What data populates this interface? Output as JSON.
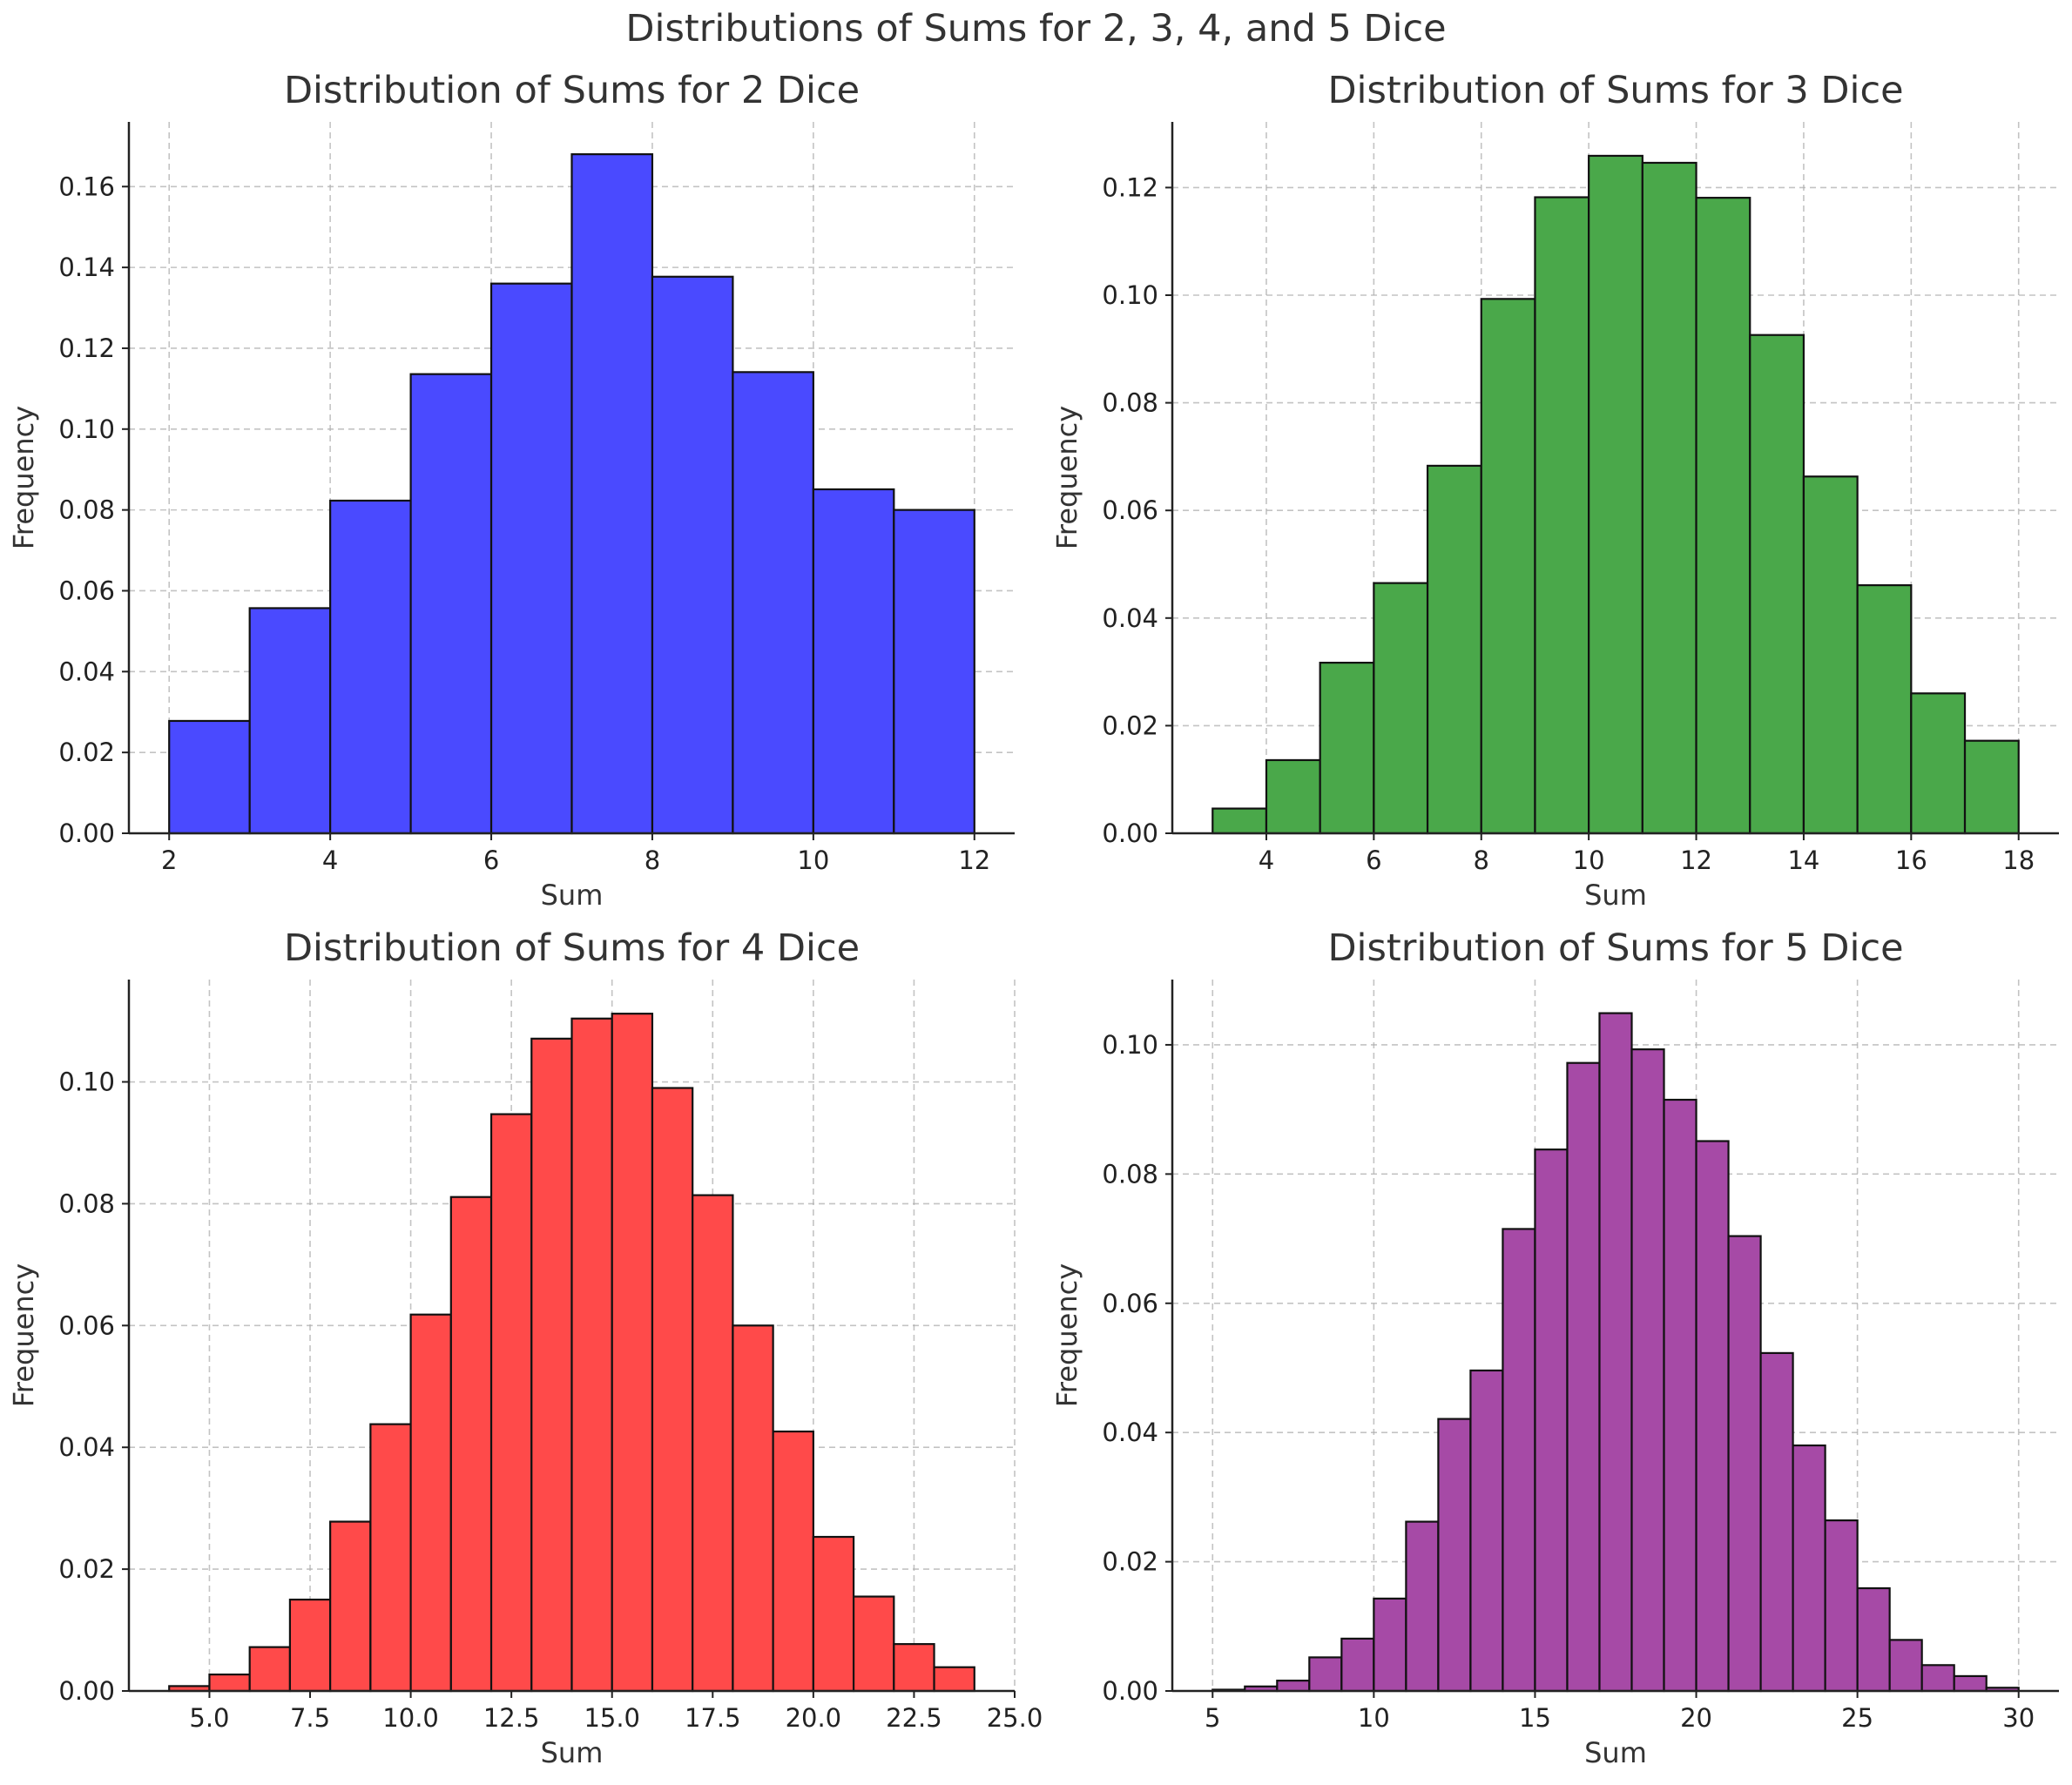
{
  "suptitle": "Distributions of Sums for 2, 3, 4, and 5 Dice",
  "chart_data": [
    {
      "type": "bar",
      "title": "Distribution of Sums for 2 Dice",
      "xlabel": "Sum",
      "ylabel": "Frequency",
      "color": "#4a4aff",
      "bin_edges": [
        2,
        3,
        4,
        5,
        6,
        7,
        8,
        9,
        10,
        11,
        12
      ],
      "values": [
        0.0278,
        0.0557,
        0.0823,
        0.1136,
        0.136,
        0.168,
        0.1377,
        0.1141,
        0.0851,
        0.08
      ],
      "xlim": [
        1.5,
        12.5
      ],
      "ylim": [
        0,
        0.176
      ],
      "xticks": [
        2,
        4,
        6,
        8,
        10,
        12
      ],
      "xtick_labels": [
        "2",
        "4",
        "6",
        "8",
        "10",
        "12"
      ],
      "yticks": [
        0,
        0.02,
        0.04,
        0.06,
        0.08,
        0.1,
        0.12,
        0.14,
        0.16
      ],
      "ytick_labels": [
        "0.00",
        "0.02",
        "0.04",
        "0.06",
        "0.08",
        "0.10",
        "0.12",
        "0.14",
        "0.16"
      ],
      "grid": true
    },
    {
      "type": "bar",
      "title": "Distribution of Sums for 3 Dice",
      "xlabel": "Sum",
      "ylabel": "Frequency",
      "color": "#4aa84a",
      "bin_edges": [
        3,
        4,
        5,
        6,
        7,
        8,
        9,
        10,
        11,
        12,
        13,
        14,
        15,
        16,
        17,
        18
      ],
      "values": [
        0.0046,
        0.0136,
        0.0317,
        0.0465,
        0.0683,
        0.0993,
        0.1182,
        0.1259,
        0.1246,
        0.1181,
        0.0926,
        0.0663,
        0.0461,
        0.026,
        0.0172
      ],
      "xlim": [
        2.25,
        18.75
      ],
      "ylim": [
        0,
        0.1322
      ],
      "xticks": [
        4,
        6,
        8,
        10,
        12,
        14,
        16,
        18
      ],
      "xtick_labels": [
        "4",
        "6",
        "8",
        "10",
        "12",
        "14",
        "16",
        "18"
      ],
      "yticks": [
        0,
        0.02,
        0.04,
        0.06,
        0.08,
        0.1,
        0.12
      ],
      "ytick_labels": [
        "0.00",
        "0.02",
        "0.04",
        "0.06",
        "0.08",
        "0.10",
        "0.12"
      ],
      "grid": true
    },
    {
      "type": "bar",
      "title": "Distribution of Sums for 4 Dice",
      "xlabel": "Sum",
      "ylabel": "Frequency",
      "color": "#ff4a4a",
      "bin_edges": [
        4,
        5,
        6,
        7,
        8,
        9,
        10,
        11,
        12,
        13,
        14,
        15,
        16,
        17,
        18,
        19,
        20,
        21,
        22,
        23,
        24
      ],
      "values": [
        0.0008,
        0.0027,
        0.0072,
        0.015,
        0.0278,
        0.0438,
        0.0618,
        0.0811,
        0.0947,
        0.1071,
        0.1104,
        0.1112,
        0.099,
        0.0814,
        0.06,
        0.0426,
        0.0253,
        0.0155,
        0.0077,
        0.0039
      ],
      "xlim": [
        3.0,
        25.0
      ],
      "ylim": [
        0,
        0.1168
      ],
      "xticks": [
        5,
        7.5,
        10,
        12.5,
        15,
        17.5,
        20,
        22.5,
        25
      ],
      "xtick_labels": [
        "5.0",
        "7.5",
        "10.0",
        "12.5",
        "15.0",
        "17.5",
        "20.0",
        "22.5",
        "25.0"
      ],
      "yticks": [
        0,
        0.02,
        0.04,
        0.06,
        0.08,
        0.1
      ],
      "ytick_labels": [
        "0.00",
        "0.02",
        "0.04",
        "0.06",
        "0.08",
        "0.10"
      ],
      "grid": true
    },
    {
      "type": "bar",
      "title": "Distribution of Sums for 5 Dice",
      "xlabel": "Sum",
      "ylabel": "Frequency",
      "color": "#a64aa6",
      "bin_edges": [
        5,
        6,
        7,
        8,
        9,
        10,
        11,
        12,
        13,
        14,
        15,
        16,
        17,
        18,
        19,
        20,
        21,
        22,
        23,
        24,
        25,
        26,
        27,
        28,
        29,
        30
      ],
      "values": [
        0.0002,
        0.0007,
        0.0016,
        0.0052,
        0.0081,
        0.0143,
        0.0262,
        0.0421,
        0.0496,
        0.0715,
        0.0838,
        0.0972,
        0.1049,
        0.0993,
        0.0915,
        0.0851,
        0.0704,
        0.0523,
        0.038,
        0.0264,
        0.0159,
        0.0079,
        0.004,
        0.0023,
        0.0005
      ],
      "xlim": [
        3.75,
        31.25
      ],
      "ylim": [
        0,
        0.1101
      ],
      "xticks": [
        5,
        10,
        15,
        20,
        25,
        30
      ],
      "xtick_labels": [
        "5",
        "10",
        "15",
        "20",
        "25",
        "30"
      ],
      "yticks": [
        0,
        0.02,
        0.04,
        0.06,
        0.08,
        0.1
      ],
      "ytick_labels": [
        "0.00",
        "0.02",
        "0.04",
        "0.06",
        "0.08",
        "0.10"
      ],
      "grid": true
    }
  ]
}
